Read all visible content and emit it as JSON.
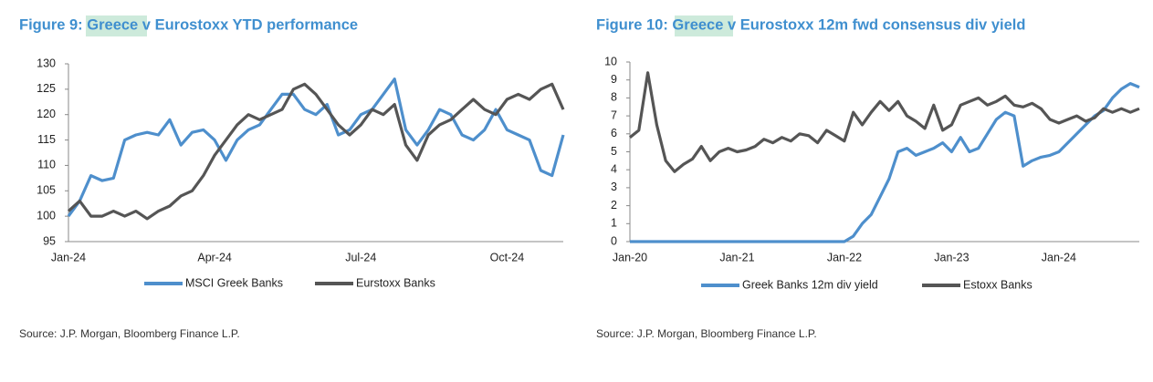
{
  "chart_data": [
    {
      "type": "line",
      "title": "Figure 9: Greece v Eurostoxx YTD performance",
      "categories": [
        "Jan-24",
        null,
        null,
        null,
        null,
        null,
        null,
        null,
        null,
        null,
        null,
        null,
        null,
        "Apr-24",
        null,
        null,
        null,
        null,
        null,
        null,
        null,
        null,
        null,
        null,
        null,
        null,
        "Jul-24",
        null,
        null,
        null,
        null,
        null,
        null,
        null,
        null,
        null,
        null,
        null,
        null,
        "Oct-24",
        null,
        null,
        null,
        null,
        null
      ],
      "series": [
        {
          "name": "MSCI Greek Banks",
          "color": "#4e8fcc",
          "values": [
            100,
            103,
            108,
            107,
            107.5,
            115,
            116,
            116.5,
            116,
            119,
            114,
            116.5,
            117,
            115,
            111,
            115,
            117,
            118,
            121,
            124,
            124,
            121,
            120,
            122,
            116,
            117,
            120,
            121,
            124,
            127,
            117,
            114,
            117,
            121,
            120,
            116,
            115,
            117,
            121,
            117,
            116,
            115,
            109,
            108,
            116
          ]
        },
        {
          "name": "Eurstoxx Banks",
          "color": "#555555",
          "values": [
            101,
            103,
            100,
            100,
            101,
            100,
            101,
            99.5,
            101,
            102,
            104,
            105,
            108,
            112,
            115,
            118,
            120,
            119,
            120,
            121,
            125,
            126,
            124,
            121,
            118,
            116,
            118,
            121,
            120,
            122,
            114,
            111,
            116,
            118,
            119,
            121,
            123,
            121,
            120,
            123,
            124,
            123,
            125,
            126,
            121
          ]
        }
      ],
      "ylim": [
        95,
        130
      ],
      "yticks": [
        95,
        100,
        105,
        110,
        115,
        120,
        125,
        130
      ],
      "grid": false,
      "legend": "bottom",
      "source": "Source: J.P. Morgan, Bloomberg Finance L.P."
    },
    {
      "type": "line",
      "title": "Figure 10: Greece v Eurostoxx 12m fwd consensus div yield",
      "categories": [
        "Jan-20",
        null,
        null,
        null,
        null,
        null,
        null,
        null,
        null,
        null,
        null,
        null,
        "Jan-21",
        null,
        null,
        null,
        null,
        null,
        null,
        null,
        null,
        null,
        null,
        null,
        "Jan-22",
        null,
        null,
        null,
        null,
        null,
        null,
        null,
        null,
        null,
        null,
        null,
        "Jan-23",
        null,
        null,
        null,
        null,
        null,
        null,
        null,
        null,
        null,
        null,
        null,
        "Jan-24",
        null,
        null,
        null,
        null,
        null,
        null,
        null,
        null,
        null
      ],
      "series": [
        {
          "name": "Greek Banks 12m div yield",
          "color": "#4e8fcc",
          "values": [
            0,
            0,
            0,
            0,
            0,
            0,
            0,
            0,
            0,
            0,
            0,
            0,
            0,
            0,
            0,
            0,
            0,
            0,
            0,
            0,
            0,
            0,
            0,
            0,
            0,
            0.3,
            1,
            1.5,
            2.5,
            3.5,
            5,
            5.2,
            4.8,
            5,
            5.2,
            5.5,
            5,
            5.8,
            5,
            5.2,
            6,
            6.8,
            7.2,
            7,
            4.2,
            4.5,
            4.7,
            4.8,
            5,
            5.5,
            6,
            6.5,
            7,
            7.3,
            8,
            8.5,
            8.8,
            8.6
          ]
        },
        {
          "name": "Estoxx Banks",
          "color": "#555555",
          "values": [
            5.8,
            6.2,
            9.4,
            6.5,
            4.5,
            3.9,
            4.3,
            4.6,
            5.3,
            4.5,
            5,
            5.2,
            5,
            5.1,
            5.3,
            5.7,
            5.5,
            5.8,
            5.6,
            6,
            5.9,
            5.5,
            6.2,
            5.9,
            5.6,
            7.2,
            6.5,
            7.2,
            7.8,
            7.3,
            7.8,
            7,
            6.7,
            6.3,
            7.6,
            6.2,
            6.5,
            7.6,
            7.8,
            8,
            7.6,
            7.8,
            8.1,
            7.6,
            7.5,
            7.7,
            7.4,
            6.8,
            6.6,
            6.8,
            7,
            6.7,
            6.9,
            7.4,
            7.2,
            7.4,
            7.2,
            7.4
          ]
        }
      ],
      "ylim": [
        0,
        10
      ],
      "yticks": [
        0,
        1,
        2,
        3,
        4,
        5,
        6,
        7,
        8,
        9,
        10
      ],
      "grid": false,
      "legend": "bottom",
      "source": "Source: J.P. Morgan, Bloomberg Finance L.P."
    }
  ]
}
